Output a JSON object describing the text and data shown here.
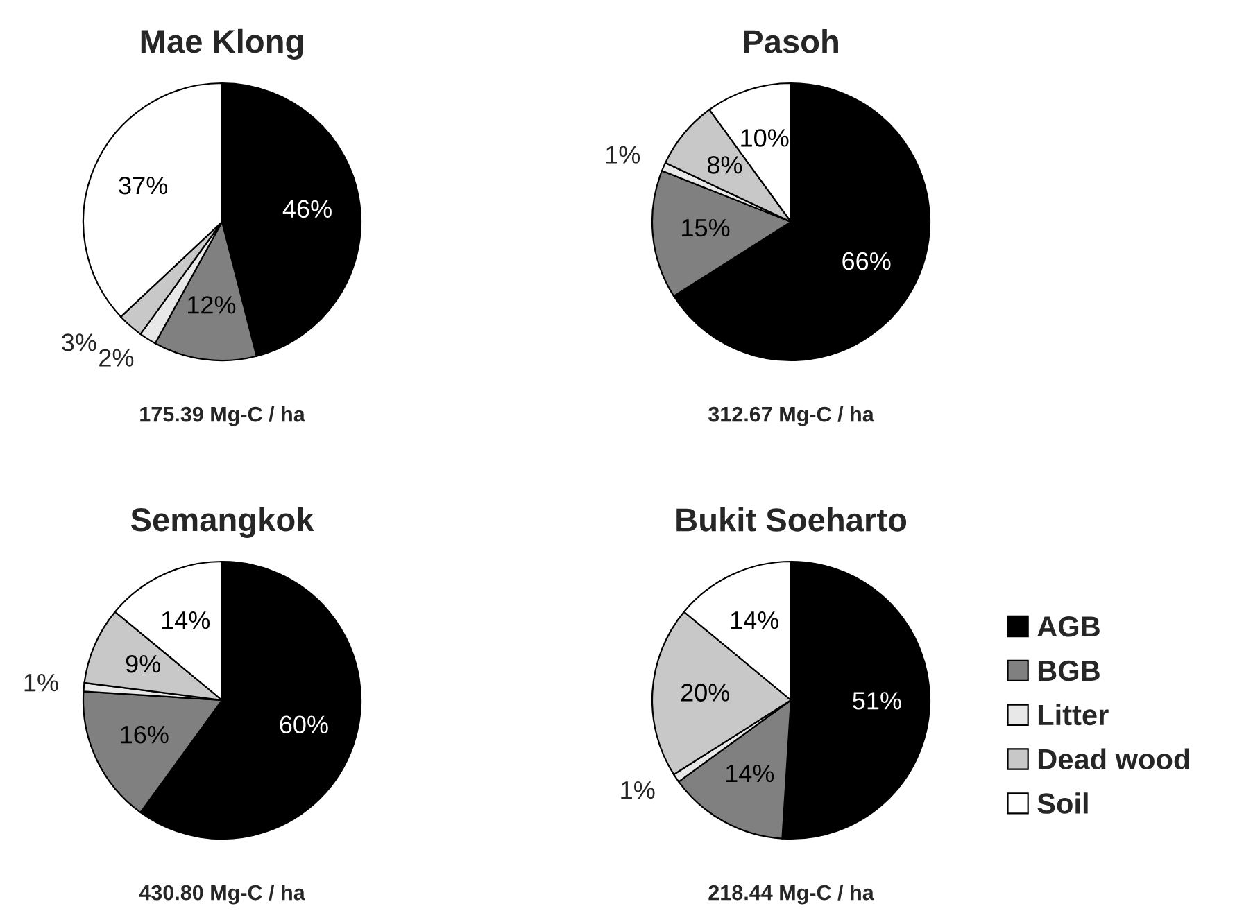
{
  "chart_data": [
    {
      "type": "pie",
      "title": "Mae Klong",
      "categories": [
        null,
        null,
        null,
        null,
        null
      ],
      "values": [
        46,
        12,
        2,
        3,
        37
      ],
      "value_labels": [
        "46%",
        "12%",
        "2%",
        "3%",
        "37%"
      ],
      "colors": [
        "#000000",
        "#808080",
        "#e8e8e8",
        "#c8c8c8",
        "#ffffff"
      ],
      "annotations": [
        "175.39 Mg-C / ha"
      ]
    },
    {
      "type": "pie",
      "title": "Pasoh",
      "categories": [
        null,
        null,
        null,
        null,
        null
      ],
      "values": [
        66,
        15,
        1,
        8,
        10
      ],
      "value_labels": [
        "66%",
        "15%",
        "1%",
        "8%",
        "10%"
      ],
      "colors": [
        "#000000",
        "#808080",
        "#e8e8e8",
        "#c8c8c8",
        "#ffffff"
      ],
      "annotations": [
        "312.67 Mg-C / ha"
      ]
    },
    {
      "type": "pie",
      "title": "Semangkok",
      "categories": [
        null,
        null,
        null,
        null,
        null
      ],
      "values": [
        60,
        16,
        1,
        9,
        14
      ],
      "value_labels": [
        "60%",
        "16%",
        "1%",
        "9%",
        "14%"
      ],
      "colors": [
        "#000000",
        "#808080",
        "#e8e8e8",
        "#c8c8c8",
        "#ffffff"
      ],
      "annotations": [
        "430.80 Mg-C / ha"
      ]
    },
    {
      "type": "pie",
      "title": "Bukit Soeharto",
      "categories": [
        "AGB",
        "BGB",
        "Litter",
        "Dead wood",
        "Soil"
      ],
      "values": [
        51,
        14,
        1,
        20,
        14
      ],
      "value_labels": [
        "51%",
        "14%",
        "1%",
        "20%",
        "14%"
      ],
      "colors": [
        "#000000",
        "#808080",
        "#e8e8e8",
        "#c8c8c8",
        "#ffffff"
      ],
      "annotations": [
        "218.44 Mg-C / ha"
      ],
      "legend": "right"
    }
  ]
}
